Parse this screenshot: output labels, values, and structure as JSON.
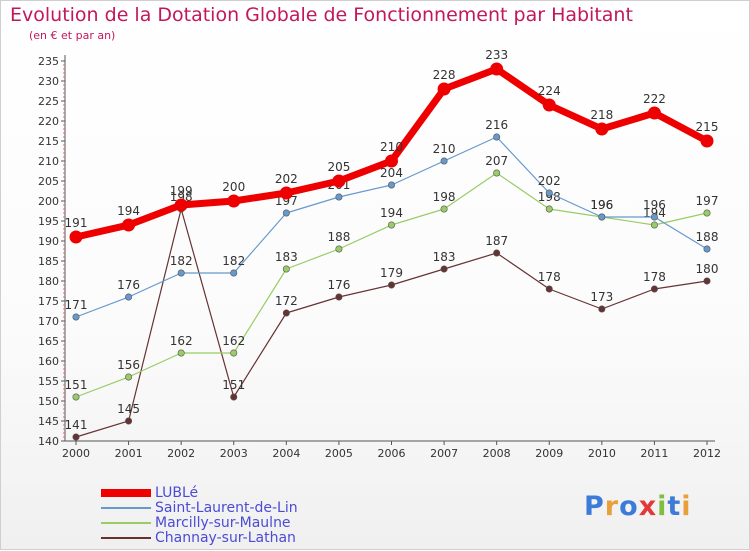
{
  "title": "Evolution de la Dotation Globale de Fonctionnement par Habitant",
  "subtitle": "(en € et par an)",
  "logo": {
    "text": "Proxiti",
    "letters": [
      {
        "ch": "P",
        "color": "#3d7bd9"
      },
      {
        "ch": "r",
        "color": "#e8a13a"
      },
      {
        "ch": "o",
        "color": "#3d7bd9"
      },
      {
        "ch": "x",
        "color": "#e23a3a"
      },
      {
        "ch": "i",
        "color": "#7fbf3f"
      },
      {
        "ch": "t",
        "color": "#3d7bd9"
      },
      {
        "ch": "i",
        "color": "#e8a13a"
      }
    ]
  },
  "chart_data": {
    "type": "line",
    "x": [
      "2000",
      "2001",
      "2002",
      "2003",
      "2004",
      "2005",
      "2006",
      "2007",
      "2008",
      "2009",
      "2010",
      "2011",
      "2012"
    ],
    "ylim": [
      140,
      235
    ],
    "ytick_step": 5,
    "grid": false,
    "legend_position": "bottom-left",
    "series": [
      {
        "name": "LUBLé",
        "color": "#ee0000",
        "values": [
          191,
          194,
          199,
          200,
          202,
          205,
          210,
          228,
          233,
          224,
          218,
          222,
          215
        ]
      },
      {
        "name": "Saint-Laurent-de-Lin",
        "color": "#6699cc",
        "values": [
          171,
          176,
          182,
          182,
          197,
          201,
          204,
          210,
          216,
          202,
          196,
          196,
          188
        ]
      },
      {
        "name": "Marcilly-sur-Maulne",
        "color": "#99cc66",
        "values": [
          151,
          156,
          162,
          162,
          183,
          188,
          194,
          198,
          207,
          198,
          196,
          194,
          197
        ]
      },
      {
        "name": "Channay-sur-Lathan",
        "color": "#663333",
        "values": [
          141,
          145,
          198,
          151,
          172,
          176,
          179,
          183,
          187,
          178,
          173,
          178,
          180
        ]
      }
    ]
  }
}
